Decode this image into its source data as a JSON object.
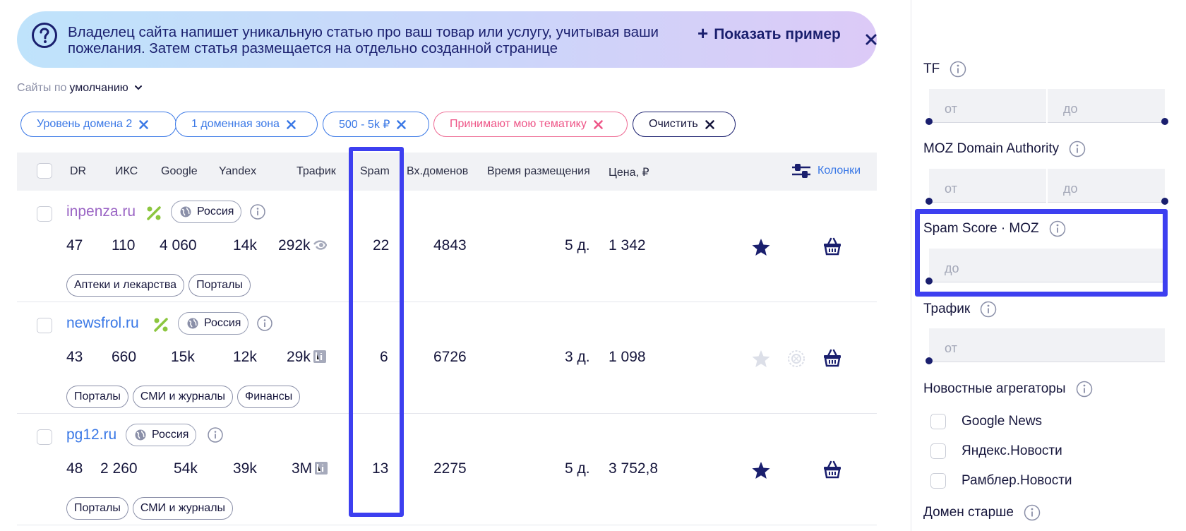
{
  "banner": {
    "text": "Владелец сайта напишет уникальную статью про ваш товар или услугу, учитывая ваши пожелания. Затем статья размещается на отдельно созданной странице",
    "show_example": "Показать пример",
    "plus": "+"
  },
  "sort": {
    "prefix": "Сайты по",
    "value": "умолчанию"
  },
  "chips": [
    {
      "label": "Уровень домена 2"
    },
    {
      "label": "1 доменная зона"
    },
    {
      "label": "500 - 5k ₽"
    },
    {
      "label": "Принимают мою тематику"
    },
    {
      "label": "Очистить"
    }
  ],
  "table": {
    "headers": {
      "dr": "DR",
      "iks": "ИКС",
      "google": "Google",
      "yandex": "Yandex",
      "traffic": "Трафик",
      "spam": "Spam",
      "in_domains": "Вх.доменов",
      "time": "Время размещения",
      "price": "Цена, ₽"
    },
    "columns_button": "Колонки",
    "rows": [
      {
        "site": "inpenza.ru",
        "geo": "Россия",
        "dr": "47",
        "iks": "110",
        "google": "4 060",
        "yandex": "14k",
        "traffic": "292k",
        "spam": "22",
        "in_domains": "4843",
        "time": "5 д.",
        "price": "1 342",
        "tags": [
          "Аптеки и лекарства",
          "Порталы"
        ]
      },
      {
        "site": "newsfrol.ru",
        "geo": "Россия",
        "dr": "43",
        "iks": "660",
        "google": "15k",
        "yandex": "12k",
        "traffic": "29k",
        "spam": "6",
        "in_domains": "6726",
        "time": "3 д.",
        "price": "1 098",
        "tags": [
          "Порталы",
          "СМИ и журналы",
          "Финансы"
        ]
      },
      {
        "site": "pg12.ru",
        "geo": "Россия",
        "dr": "48",
        "iks": "2 260",
        "google": "54k",
        "yandex": "39k",
        "traffic": "3M",
        "spam": "13",
        "in_domains": "2275",
        "time": "5 д.",
        "price": "3 752,8",
        "tags": [
          "Порталы",
          "СМИ и журналы"
        ]
      }
    ]
  },
  "filters": {
    "tf": {
      "label": "TF",
      "from": "от",
      "to": "до"
    },
    "moz_da": {
      "label": "MOZ Domain Authority",
      "from": "от",
      "to": "до"
    },
    "spam_score": {
      "label": "Spam Score · MOZ",
      "to": "до"
    },
    "traffic": {
      "label": "Трафик",
      "from": "от"
    },
    "news": {
      "label": "Новостные агрегаторы",
      "options": [
        "Google News",
        "Яндекс.Новости",
        "Рамблер.Новости"
      ]
    },
    "domain_age": {
      "label": "Домен старше"
    }
  },
  "colors": {
    "accent": "#3a78e6",
    "navy": "#1a1f6e",
    "highlight": "#3d3ff0",
    "pink": "#ee5587",
    "green": "#8cc63f"
  }
}
